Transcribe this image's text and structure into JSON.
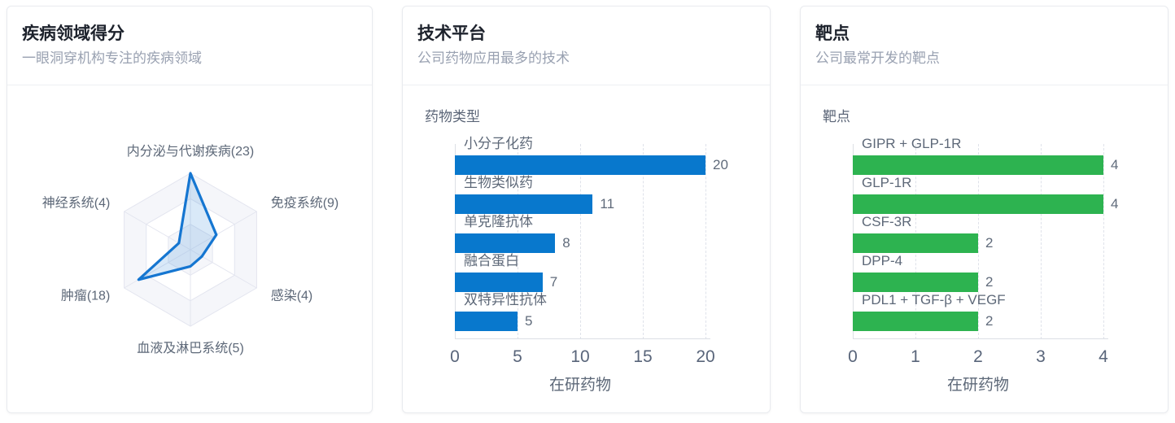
{
  "page": {
    "background": "#ffffff"
  },
  "cards": {
    "disease": {
      "title": "疾病领域得分",
      "subtitle": "一眼洞穿机构专注的疾病领域"
    },
    "tech": {
      "title": "技术平台",
      "subtitle": "公司药物应用最多的技术"
    },
    "target": {
      "title": "靶点",
      "subtitle": "公司最常开发的靶点"
    }
  },
  "colors": {
    "bar_blue": "#0878cd",
    "bar_green": "#2db350",
    "radar_line": "#1576d1",
    "radar_fill": "rgba(21,118,209,0.16)",
    "radar_grid_stroke": "#e3e5ef",
    "radar_grid_band": "#f5f6fa",
    "grid_dash": "#dfe2ea",
    "axis_line": "#dcdfe5",
    "text_label": "#5d6878",
    "text_value": "#606b7b",
    "card_title": "#1d222c",
    "card_subtitle": "#99a1b1"
  },
  "chart_data": [
    {
      "type": "radar",
      "title": "疾病领域得分",
      "max": 23,
      "rings": 3,
      "grid": "hexagon-web",
      "line_color": "#1576d1",
      "fill_color": "rgba(21,118,209,0.16)",
      "indicators": [
        {
          "label": "内分泌与代谢疾病(23)",
          "value": 23
        },
        {
          "label": "免疫系统(9)",
          "value": 9
        },
        {
          "label": "感染(4)",
          "value": 4
        },
        {
          "label": "血液及淋巴系统(5)",
          "value": 5
        },
        {
          "label": "肿瘤(18)",
          "value": 18
        },
        {
          "label": "神经系统(4)",
          "value": 4
        }
      ]
    },
    {
      "type": "bar",
      "orientation": "horizontal",
      "title": "药物类型",
      "categories": [
        "小分子化药",
        "生物类似药",
        "单克隆抗体",
        "融合蛋白",
        "双特异性抗体"
      ],
      "values": [
        20,
        11,
        8,
        7,
        5
      ],
      "xlabel": "在研药物",
      "xticks": [
        0,
        5,
        10,
        15,
        20
      ],
      "xlim": [
        0,
        20
      ],
      "grid": "dashed-vertical",
      "bar_color": "#0878cd"
    },
    {
      "type": "bar",
      "orientation": "horizontal",
      "title": "靶点",
      "categories": [
        "GIPR + GLP-1R",
        "GLP-1R",
        "CSF-3R",
        "DPP-4",
        "PDL1 + TGF-β + VEGF"
      ],
      "values": [
        4,
        4,
        2,
        2,
        2
      ],
      "xlabel": "在研药物",
      "xticks": [
        0,
        1,
        2,
        3,
        4
      ],
      "xlim": [
        0,
        4
      ],
      "grid": "dashed-vertical",
      "bar_color": "#2db350"
    }
  ]
}
